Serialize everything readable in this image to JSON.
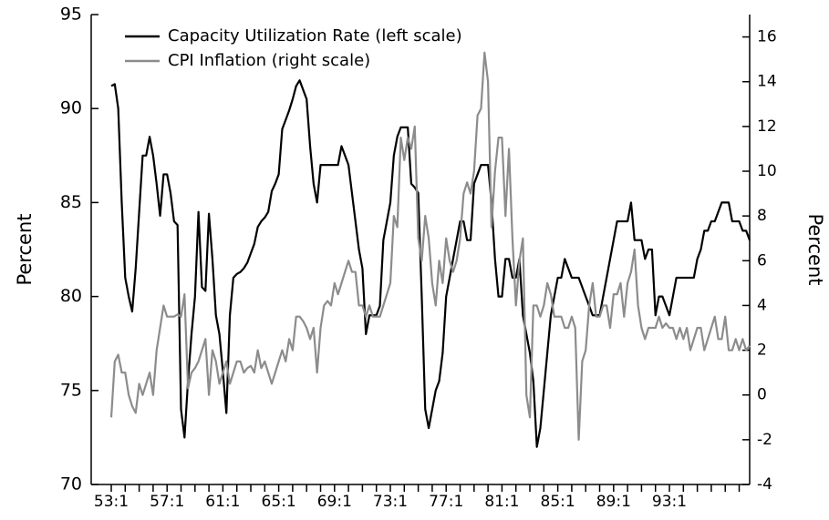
{
  "chart_data": {
    "type": "line",
    "categories": [
      "53:1",
      null,
      null,
      null,
      null,
      null,
      null,
      null,
      null,
      null,
      null,
      null,
      null,
      null,
      null,
      null,
      "57:1",
      null,
      null,
      null,
      null,
      null,
      null,
      null,
      null,
      null,
      null,
      null,
      null,
      null,
      null,
      null,
      "61:1",
      null,
      null,
      null,
      null,
      null,
      null,
      null,
      null,
      null,
      null,
      null,
      null,
      null,
      null,
      null,
      "65:1",
      null,
      null,
      null,
      null,
      null,
      null,
      null,
      null,
      null,
      null,
      null,
      null,
      null,
      null,
      null,
      "69:1",
      null,
      null,
      null,
      null,
      null,
      null,
      null,
      null,
      null,
      null,
      null,
      null,
      null,
      null,
      null,
      "73:1",
      null,
      null,
      null,
      null,
      null,
      null,
      null,
      null,
      null,
      null,
      null,
      null,
      null,
      null,
      null,
      "77:1",
      null,
      null,
      null,
      null,
      null,
      null,
      null,
      null,
      null,
      null,
      null,
      null,
      null,
      null,
      null,
      "81:1",
      null,
      null,
      null,
      null,
      null,
      null,
      null,
      null,
      null,
      null,
      null,
      null,
      null,
      null,
      null,
      "85:1",
      null,
      null,
      null,
      null,
      null,
      null,
      null,
      null,
      null,
      null,
      null,
      null,
      null,
      null,
      null,
      "89:1",
      null,
      null,
      null,
      null,
      null,
      null,
      null,
      null,
      null,
      null,
      null,
      null,
      null,
      null,
      null,
      "93:1",
      null,
      null,
      null,
      null,
      null,
      null,
      null,
      null,
      null,
      null,
      null,
      null,
      null,
      null,
      null,
      null,
      null,
      null,
      null,
      null,
      null,
      null,
      null
    ],
    "series": [
      {
        "name": "Capacity Utilization Rate (left scale)",
        "color": "#000000",
        "axis": "y",
        "values": [
          91.2,
          91.3,
          90,
          85,
          81,
          80,
          79.2,
          81.5,
          84.5,
          87.5,
          87.5,
          88.5,
          87.5,
          86,
          84.3,
          86.5,
          86.5,
          85.5,
          84,
          83.8,
          74,
          72.5,
          75.5,
          78,
          80,
          84.5,
          80.5,
          80.3,
          84.4,
          82,
          79,
          78,
          76,
          73.8,
          79,
          81,
          81.2,
          81.3,
          81.5,
          81.8,
          82.3,
          82.8,
          83.7,
          84,
          84.2,
          84.5,
          85.6,
          86,
          86.5,
          88.9,
          89.4,
          89.9,
          90.5,
          91.2,
          91.5,
          91,
          90.5,
          88,
          86,
          85,
          87,
          87,
          87,
          87,
          87,
          87,
          88,
          87.5,
          87,
          85.5,
          84,
          82.5,
          81.5,
          78,
          79,
          79,
          79,
          79.5,
          83,
          84,
          85,
          87.5,
          88.5,
          89,
          89,
          89,
          86,
          85.8,
          85.5,
          80,
          74,
          73,
          74,
          75,
          75.5,
          77,
          80,
          81,
          82,
          83,
          84,
          84,
          83,
          83,
          86,
          86.5,
          87,
          87,
          87,
          85,
          82,
          80,
          80,
          82,
          82,
          81,
          81,
          82,
          79,
          78,
          77,
          75.5,
          72,
          73,
          75,
          77,
          79,
          80,
          81,
          81,
          82,
          81.5,
          81,
          81,
          81,
          80.5,
          80,
          79.5,
          79,
          79,
          79,
          80,
          81,
          82,
          83,
          84,
          84,
          84,
          84,
          85,
          83,
          83,
          83,
          82,
          82.5,
          82.5,
          79,
          80,
          80,
          79.5,
          79,
          80,
          81,
          81,
          81,
          81,
          81,
          81,
          82,
          82.5,
          83.5,
          83.5,
          84,
          84,
          84.5,
          85,
          85,
          85,
          84,
          84,
          84,
          83.5,
          83.5,
          83
        ]
      },
      {
        "name": "CPI Inflation (right scale)",
        "color": "#8c8c8c",
        "axis": "y2",
        "values": [
          -1,
          1.5,
          1.8,
          1,
          1,
          0,
          -0.5,
          -0.8,
          0.5,
          0,
          0.5,
          1,
          0,
          2,
          3,
          4,
          3.5,
          3.5,
          3.5,
          3.6,
          3.5,
          4.5,
          0.3,
          1,
          1.2,
          1.5,
          2,
          2.5,
          0,
          2,
          1.5,
          0.5,
          1,
          1.5,
          0.5,
          1,
          1.5,
          1.5,
          1,
          1.2,
          1.3,
          1,
          2,
          1.2,
          1.5,
          1,
          0.5,
          1,
          1.5,
          2,
          1.5,
          2.5,
          2,
          3.5,
          3.5,
          3.3,
          3,
          2.5,
          3,
          1,
          3,
          4,
          4.2,
          4,
          5,
          4.5,
          5,
          5.5,
          6,
          5.5,
          5.5,
          4,
          4,
          3.5,
          4,
          3.5,
          3.5,
          3.5,
          4,
          4.5,
          5,
          8,
          7.5,
          11.5,
          10.5,
          11.5,
          11,
          12,
          7,
          6,
          8,
          7,
          5,
          4,
          6,
          5,
          7,
          6,
          5.5,
          6,
          7,
          9,
          9.5,
          9,
          10,
          12.5,
          12.8,
          15.3,
          14,
          7.5,
          10,
          11.5,
          11.5,
          8,
          11,
          7,
          4,
          6,
          7,
          0,
          -1,
          4,
          4,
          3.5,
          4,
          5,
          4.5,
          3.5,
          3.5,
          3.5,
          3,
          3,
          3.5,
          3,
          -2,
          1.5,
          2,
          4,
          5,
          3.5,
          3.5,
          4,
          4,
          3,
          4.5,
          4.5,
          5,
          3.5,
          5,
          5.5,
          6.5,
          4,
          3,
          2.5,
          3,
          3,
          3,
          3.5,
          3,
          3.2,
          3,
          3,
          2.5,
          3,
          2.5,
          3,
          2,
          2.5,
          3,
          3,
          2,
          2.5,
          3,
          3.5,
          2.5,
          2.5,
          3.5,
          2,
          2,
          2.5,
          2,
          2.5,
          2,
          2.2
        ]
      }
    ],
    "ylabel": "Percent",
    "y2label": "Percent",
    "ylim": [
      70,
      95
    ],
    "yticks": [
      70,
      75,
      80,
      85,
      90,
      95
    ],
    "y2lim": [
      -4,
      17
    ],
    "y2ticks": [
      -4,
      -2,
      0,
      2,
      4,
      6,
      8,
      10,
      12,
      14,
      16
    ],
    "legend": "upper left",
    "grid": false
  }
}
